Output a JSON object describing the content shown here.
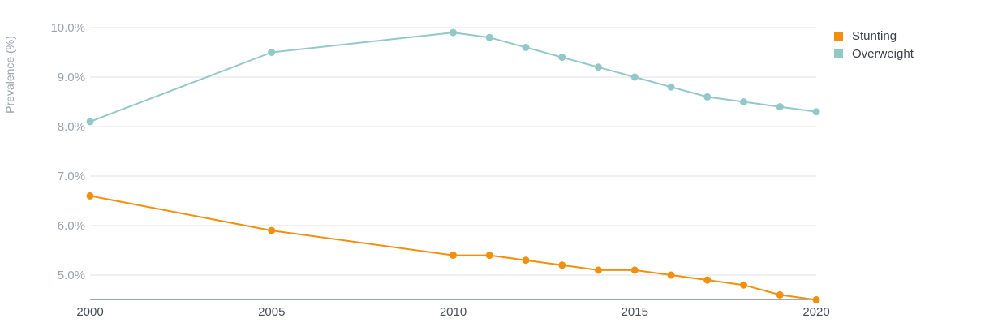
{
  "chart_data": {
    "type": "line",
    "ylabel": "Prevalence (%)",
    "x_ticks": [
      "2000",
      "2005",
      "2010",
      "2015",
      "2020"
    ],
    "y_ticks": [
      "5.0%",
      "6.0%",
      "7.0%",
      "8.0%",
      "9.0%",
      "10.0%"
    ],
    "xlim": [
      2000,
      2020
    ],
    "ylim": [
      4.5,
      10.0
    ],
    "grid": true,
    "legend_position": "right",
    "series": [
      {
        "name": "Stunting",
        "color": "#f0900e",
        "x": [
          2000,
          2005,
          2010,
          2011,
          2012,
          2013,
          2014,
          2015,
          2016,
          2017,
          2018,
          2019,
          2020
        ],
        "values": [
          6.6,
          5.9,
          5.4,
          5.4,
          5.3,
          5.2,
          5.1,
          5.1,
          5.0,
          4.9,
          4.8,
          4.6,
          4.5
        ]
      },
      {
        "name": "Overweight",
        "color": "#92c9c8",
        "x": [
          2000,
          2005,
          2010,
          2011,
          2012,
          2013,
          2014,
          2015,
          2016,
          2017,
          2018,
          2019,
          2020
        ],
        "values": [
          8.1,
          9.5,
          9.9,
          9.8,
          9.6,
          9.4,
          9.2,
          9.0,
          8.8,
          8.6,
          8.5,
          8.4,
          8.3
        ]
      }
    ]
  }
}
